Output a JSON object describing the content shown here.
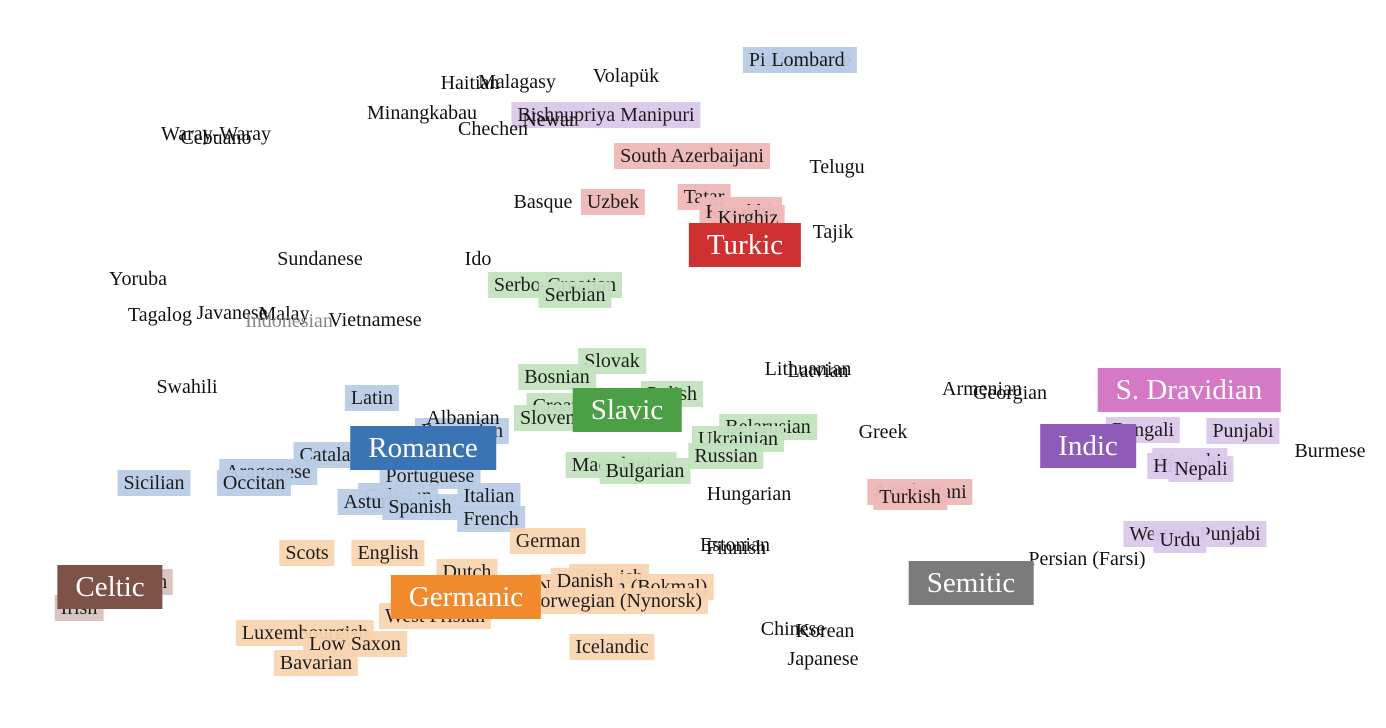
{
  "colors": {
    "romance": "#3a74b4",
    "romance_bg": "#b9cde6",
    "slavic": "#4ba045",
    "slavic_bg": "#c3e2bf",
    "germanic": "#f08a2c",
    "germanic_bg": "#f9d4b1",
    "turkic": "#cf3030",
    "turkic_bg": "#efb9b9",
    "celtic": "#7d5247",
    "celtic_bg": "#d7c4bf",
    "indic": "#8f5bb8",
    "indic_bg": "#dcc9ec",
    "dravidian": "#d578c6",
    "semitic": "#7b7b7b"
  },
  "families": [
    {
      "id": "romance",
      "label": "Romance"
    },
    {
      "id": "slavic",
      "label": "Slavic"
    },
    {
      "id": "germanic",
      "label": "Germanic"
    },
    {
      "id": "turkic",
      "label": "Turkic"
    },
    {
      "id": "celtic",
      "label": "Celtic"
    },
    {
      "id": "indic",
      "label": "Indic"
    },
    {
      "id": "dravidian",
      "label": "S. Dravidian"
    },
    {
      "id": "semitic",
      "label": "Semitic"
    }
  ],
  "languages": [
    {
      "label": "Piedmontese",
      "family": "romance"
    },
    {
      "label": "Lombard",
      "family": "romance"
    },
    {
      "label": "Latin",
      "family": "romance"
    },
    {
      "label": "Catalan",
      "family": "romance"
    },
    {
      "label": "Sicilian",
      "family": "romance"
    },
    {
      "label": "Aragonese",
      "family": "romance"
    },
    {
      "label": "Occitan",
      "family": "romance"
    },
    {
      "label": "Portuguese",
      "family": "romance"
    },
    {
      "label": "Galician",
      "family": "romance"
    },
    {
      "label": "Asturian",
      "family": "romance"
    },
    {
      "label": "Spanish",
      "family": "romance"
    },
    {
      "label": "Italian",
      "family": "romance"
    },
    {
      "label": "French",
      "family": "romance"
    },
    {
      "label": "Romanian",
      "family": "romance"
    },
    {
      "label": "Albanian",
      "family": "none"
    },
    {
      "label": "Serbo-Croatian",
      "family": "slavic"
    },
    {
      "label": "Serbian",
      "family": "slavic"
    },
    {
      "label": "Slovak",
      "family": "slavic"
    },
    {
      "label": "Bosnian",
      "family": "slavic"
    },
    {
      "label": "Polish",
      "family": "slavic"
    },
    {
      "label": "Croatian",
      "family": "slavic"
    },
    {
      "label": "Slovenian",
      "family": "slavic"
    },
    {
      "label": "Belarusian",
      "family": "slavic"
    },
    {
      "label": "Ukrainian",
      "family": "slavic"
    },
    {
      "label": "Russian",
      "family": "slavic"
    },
    {
      "label": "Macedonian",
      "family": "slavic"
    },
    {
      "label": "Bulgarian",
      "family": "slavic"
    },
    {
      "label": "Scots",
      "family": "germanic"
    },
    {
      "label": "English",
      "family": "germanic"
    },
    {
      "label": "German",
      "family": "germanic"
    },
    {
      "label": "Dutch",
      "family": "germanic"
    },
    {
      "label": "Swedish",
      "family": "germanic"
    },
    {
      "label": "Norwegian (Bokmal)",
      "family": "germanic"
    },
    {
      "label": "Norwegian (Nynorsk)",
      "family": "germanic"
    },
    {
      "label": "Danish",
      "family": "germanic"
    },
    {
      "label": "West Frisian",
      "family": "germanic"
    },
    {
      "label": "Luxembourgish",
      "family": "germanic"
    },
    {
      "label": "Low Saxon",
      "family": "germanic"
    },
    {
      "label": "Bavarian",
      "family": "germanic"
    },
    {
      "label": "Icelandic",
      "family": "germanic"
    },
    {
      "label": "Afrikaans",
      "family": "germanic"
    },
    {
      "label": "South Azerbaijani",
      "family": "turkic"
    },
    {
      "label": "Uzbek",
      "family": "turkic"
    },
    {
      "label": "Tatar",
      "family": "turkic"
    },
    {
      "label": "Chuvash",
      "family": "turkic"
    },
    {
      "label": "Kazakh",
      "family": "turkic"
    },
    {
      "label": "Kirghiz",
      "family": "turkic"
    },
    {
      "label": "Azerbaijani",
      "family": "turkic"
    },
    {
      "label": "Turkish",
      "family": "turkic"
    },
    {
      "label": "Irish",
      "family": "celtic"
    },
    {
      "label": "Breton",
      "family": "celtic"
    },
    {
      "label": "Bishnupriya Manipuri",
      "family": "indic"
    },
    {
      "label": "Bengali",
      "family": "indic"
    },
    {
      "label": "Punjabi",
      "family": "indic"
    },
    {
      "label": "Marathi",
      "family": "indic"
    },
    {
      "label": "Hindi",
      "family": "indic"
    },
    {
      "label": "Nepali",
      "family": "indic"
    },
    {
      "label": "Western Punjabi",
      "family": "indic"
    },
    {
      "label": "Urdu",
      "family": "indic"
    },
    {
      "label": "Haitian",
      "family": "none"
    },
    {
      "label": "Malagasy",
      "family": "none"
    },
    {
      "label": "Volapük",
      "family": "none"
    },
    {
      "label": "Minangkabau",
      "family": "none"
    },
    {
      "label": "Newar",
      "family": "none"
    },
    {
      "label": "Chechen",
      "family": "none"
    },
    {
      "label": "Waray-Waray",
      "family": "none"
    },
    {
      "label": "Cebuano",
      "family": "none"
    },
    {
      "label": "Telugu",
      "family": "none"
    },
    {
      "label": "Basque",
      "family": "none"
    },
    {
      "label": "Tajik",
      "family": "none"
    },
    {
      "label": "Yoruba",
      "family": "none"
    },
    {
      "label": "Sundanese",
      "family": "none"
    },
    {
      "label": "Ido",
      "family": "none"
    },
    {
      "label": "Tagalog",
      "family": "none"
    },
    {
      "label": "Javanese",
      "family": "none"
    },
    {
      "label": "Malay",
      "family": "none"
    },
    {
      "label": "Indonesian",
      "family": "none",
      "muted": true
    },
    {
      "label": "Vietnamese",
      "family": "none"
    },
    {
      "label": "Swahili",
      "family": "none"
    },
    {
      "label": "Lithuanian",
      "family": "none"
    },
    {
      "label": "Latvian",
      "family": "none"
    },
    {
      "label": "Armenian",
      "family": "none"
    },
    {
      "label": "Georgian",
      "family": "none"
    },
    {
      "label": "Greek",
      "family": "none"
    },
    {
      "label": "Hungarian",
      "family": "none"
    },
    {
      "label": "Estonian",
      "family": "none"
    },
    {
      "label": "Finnish",
      "family": "none"
    },
    {
      "label": "Persian (Farsi)",
      "family": "none"
    },
    {
      "label": "Chinese",
      "family": "none"
    },
    {
      "label": "Korean",
      "family": "none"
    },
    {
      "label": "Japanese",
      "family": "none"
    },
    {
      "label": "Burmese",
      "family": "none"
    }
  ]
}
